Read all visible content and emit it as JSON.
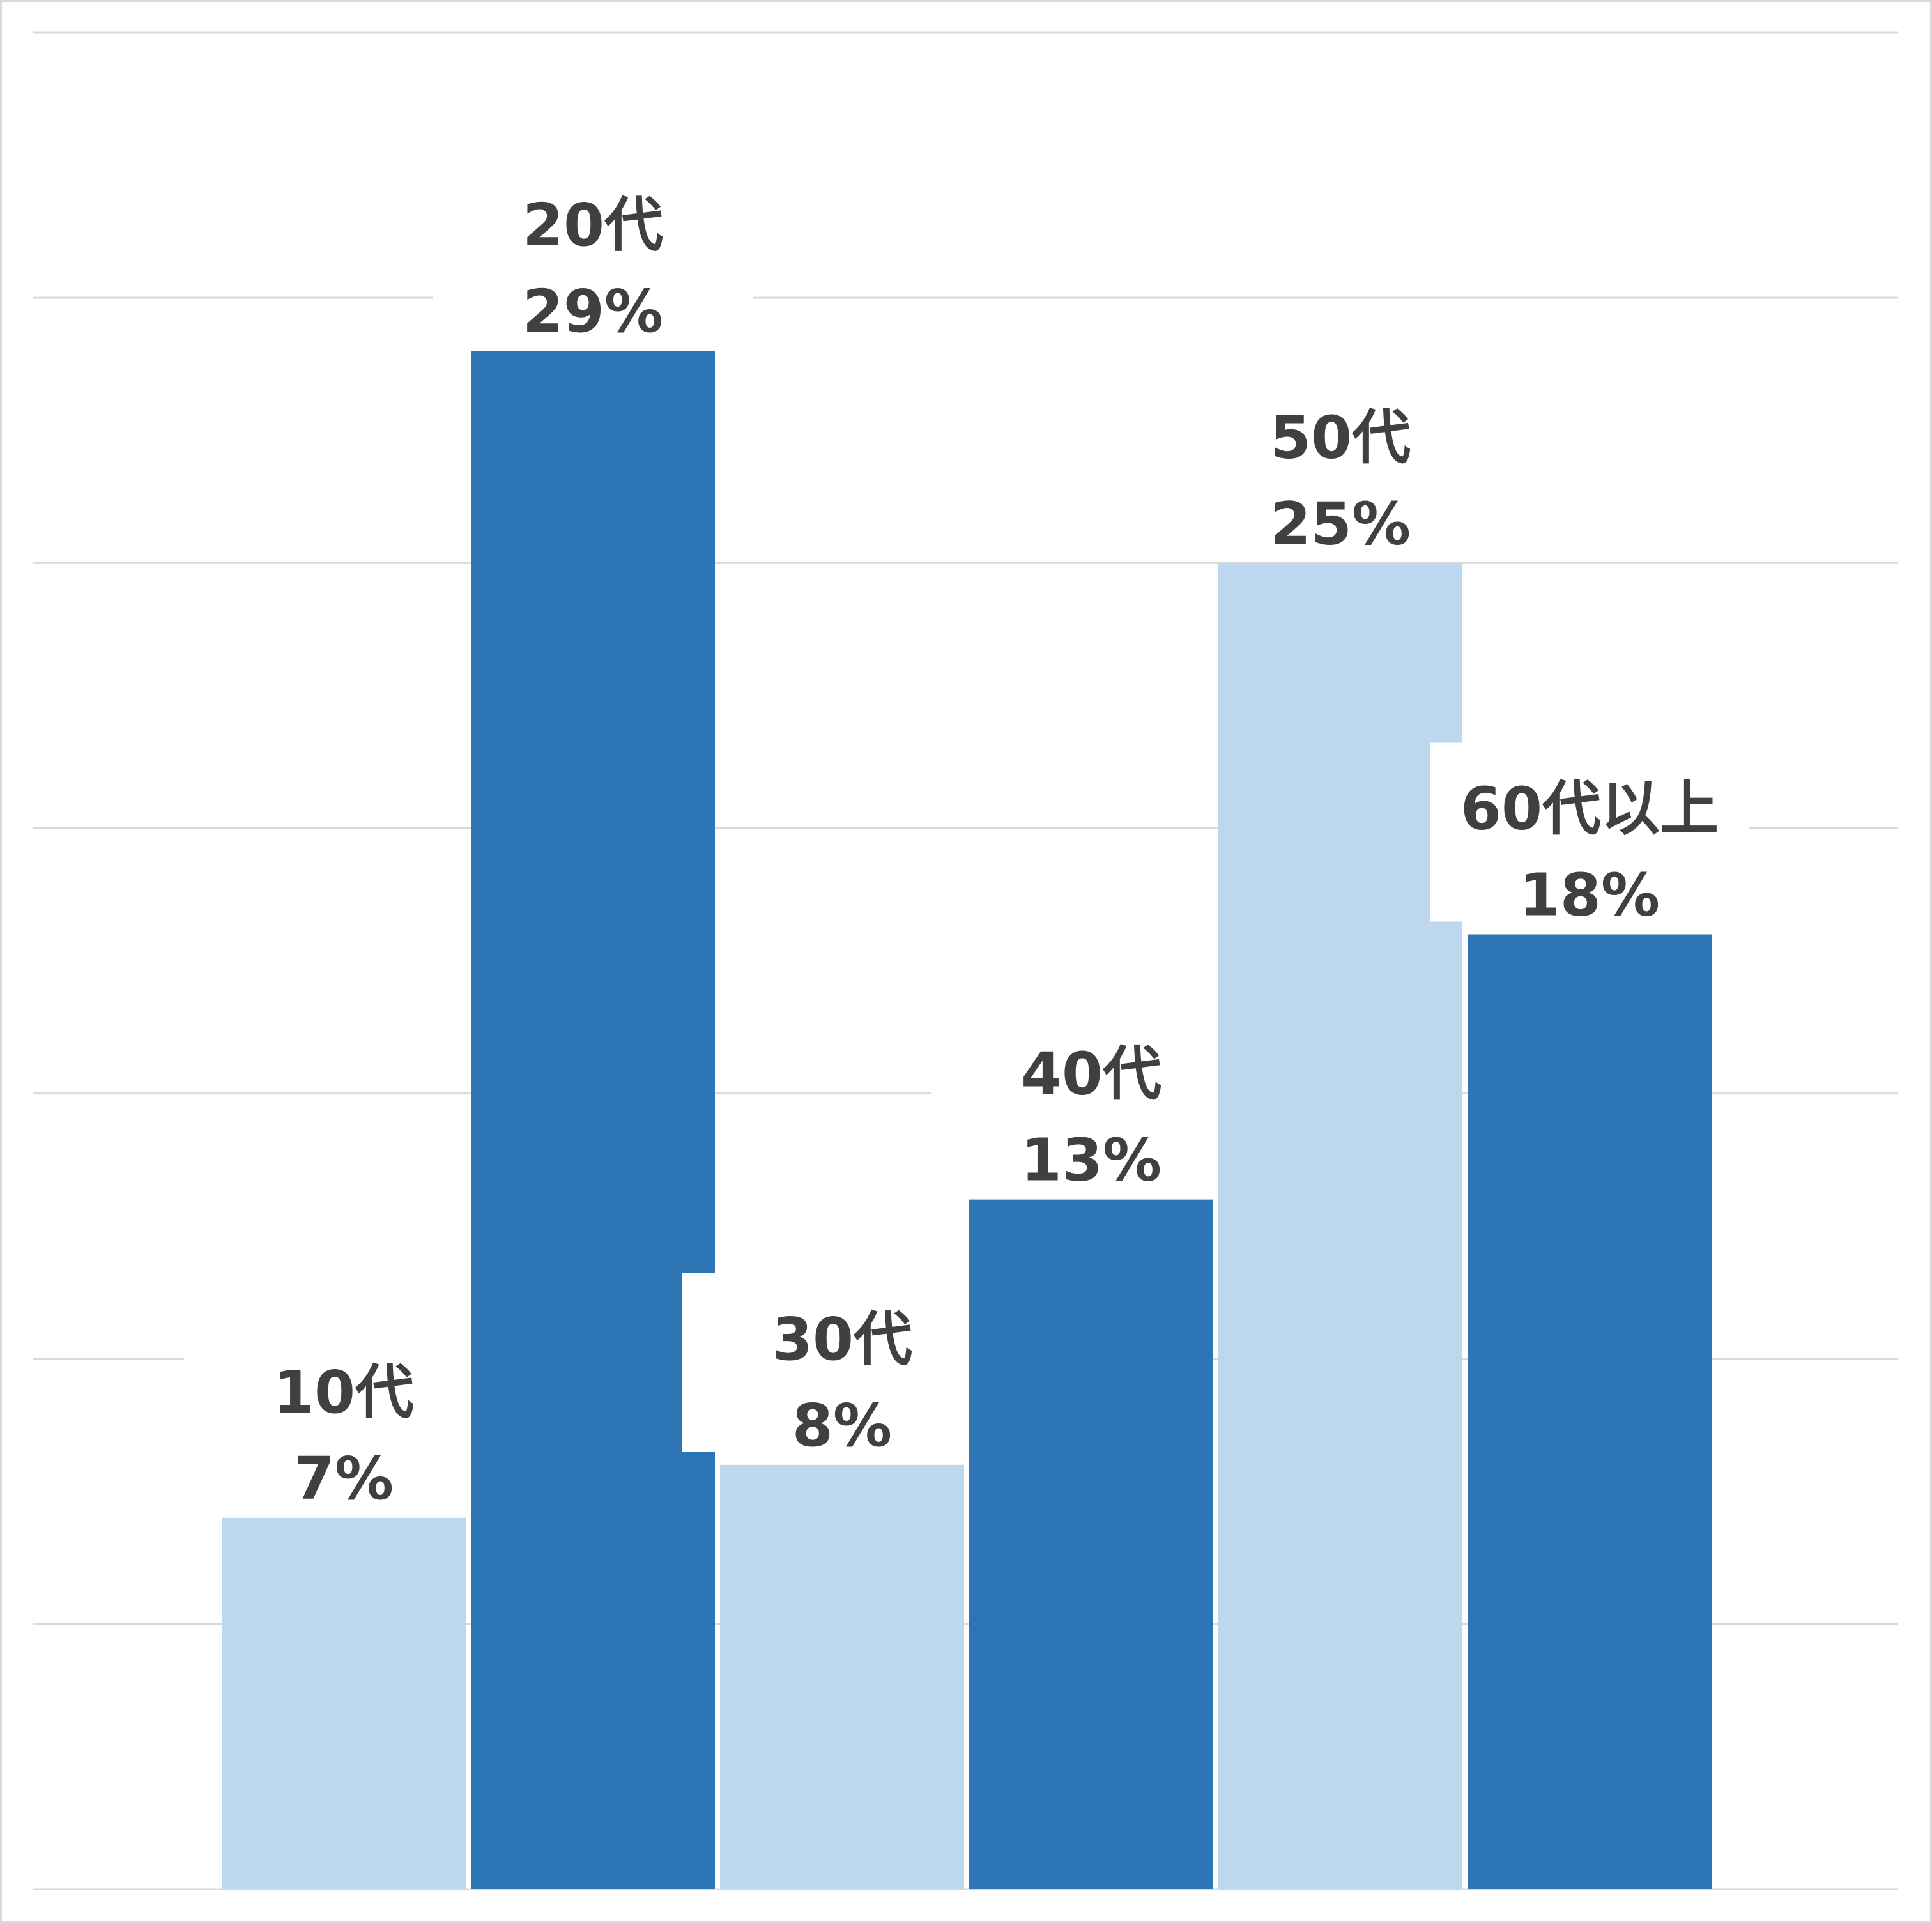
{
  "chart_data": {
    "type": "bar",
    "title": "",
    "xlabel": "",
    "ylabel": "",
    "categories": [
      "10代",
      "20代",
      "30代",
      "40代",
      "50代",
      "60代以上"
    ],
    "values": [
      7,
      29,
      8,
      13,
      25,
      18
    ],
    "value_labels": [
      "7%",
      "29%",
      "8%",
      "13%",
      "25%",
      "18%"
    ],
    "unit": "%",
    "ylim": [
      0,
      35
    ],
    "y_grid_step": 5,
    "grid": true,
    "axis_tick_labels_shown": false,
    "legend": "none",
    "bar_colors": [
      "#BDD7EE",
      "#2E75B6",
      "#BDD7EE",
      "#2E75B6",
      "#BDD7EE",
      "#2E75B6"
    ],
    "label_color": "#404040",
    "gridline_color": "#D9D9D9"
  }
}
